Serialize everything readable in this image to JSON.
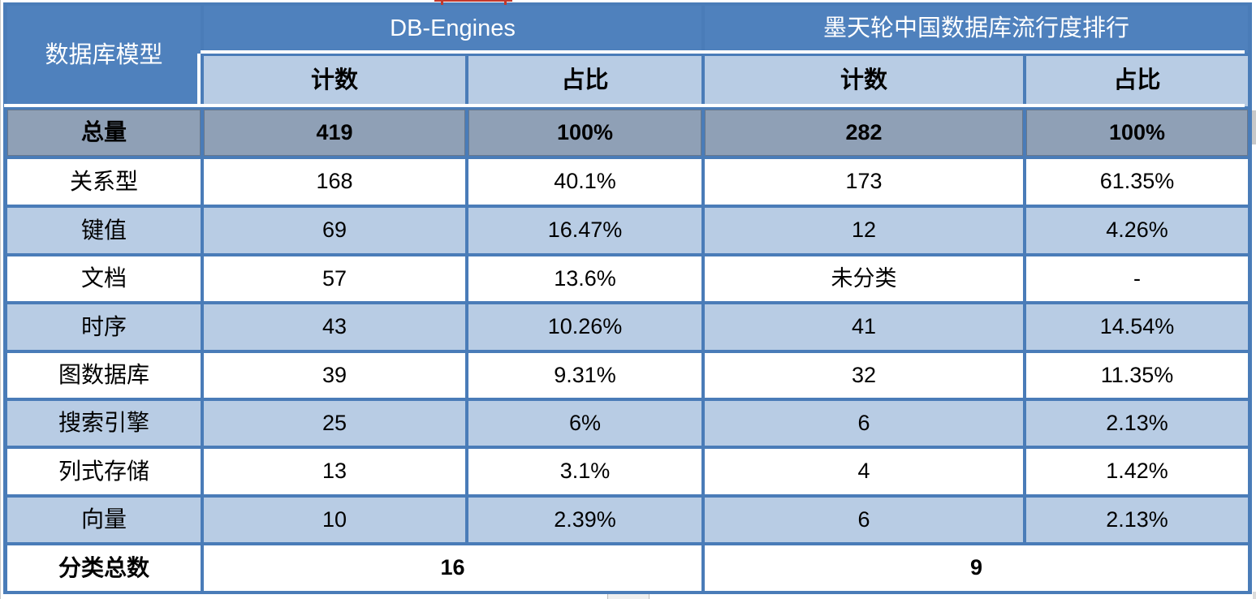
{
  "table": {
    "corner_header": "数据库模型",
    "group_headers": [
      {
        "label": "DB-Engines"
      },
      {
        "label": "墨天轮中国数据库流行度排行"
      }
    ],
    "sub_headers": [
      "计数",
      "占比",
      "计数",
      "占比"
    ],
    "rows": [
      {
        "label": "总量",
        "values": [
          "419",
          "100%",
          "282",
          "100%"
        ],
        "emphasis": true
      },
      {
        "label": "关系型",
        "values": [
          "168",
          "40.1%",
          "173",
          "61.35%"
        ]
      },
      {
        "label": "键值",
        "values": [
          "69",
          "16.47%",
          "12",
          "4.26%"
        ]
      },
      {
        "label": "文档",
        "values": [
          "57",
          "13.6%",
          "未分类",
          "-"
        ]
      },
      {
        "label": "时序",
        "values": [
          "43",
          "10.26%",
          "41",
          "14.54%"
        ]
      },
      {
        "label": "图数据库",
        "values": [
          "39",
          "9.31%",
          "32",
          "11.35%"
        ]
      },
      {
        "label": "搜索引擎",
        "values": [
          "25",
          "6%",
          "6",
          "2.13%"
        ]
      },
      {
        "label": "列式存储",
        "values": [
          "13",
          "3.1%",
          "4",
          "1.42%"
        ]
      },
      {
        "label": "向量",
        "values": [
          "10",
          "2.39%",
          "6",
          "2.13%"
        ]
      }
    ],
    "footer": {
      "label": "分类总数",
      "values": [
        "16",
        "9"
      ]
    }
  },
  "colors": {
    "header_blue": "#4F81BD",
    "light_blue": "#B8CCE4",
    "total_row_gray": "#8FA0B6",
    "border_blue": "#4A7CB8",
    "text_dark": "#000000",
    "text_light": "#FFFFFF"
  },
  "chart_data": {
    "type": "table",
    "title": "数据库模型统计对比：DB-Engines vs 墨天轮中国数据库流行度排行",
    "columns": [
      "数据库模型",
      "DB-Engines 计数",
      "DB-Engines 占比",
      "墨天轮 计数",
      "墨天轮 占比"
    ],
    "rows": [
      [
        "总量",
        "419",
        "100%",
        "282",
        "100%"
      ],
      [
        "关系型",
        "168",
        "40.1%",
        "173",
        "61.35%"
      ],
      [
        "键值",
        "69",
        "16.47%",
        "12",
        "4.26%"
      ],
      [
        "文档",
        "57",
        "13.6%",
        "未分类",
        "-"
      ],
      [
        "时序",
        "43",
        "10.26%",
        "41",
        "14.54%"
      ],
      [
        "图数据库",
        "39",
        "9.31%",
        "32",
        "11.35%"
      ],
      [
        "搜索引擎",
        "25",
        "6%",
        "6",
        "2.13%"
      ],
      [
        "列式存储",
        "13",
        "3.1%",
        "4",
        "1.42%"
      ],
      [
        "向量",
        "10",
        "2.39%",
        "6",
        "2.13%"
      ],
      [
        "分类总数",
        "16",
        "",
        "9",
        ""
      ]
    ]
  }
}
